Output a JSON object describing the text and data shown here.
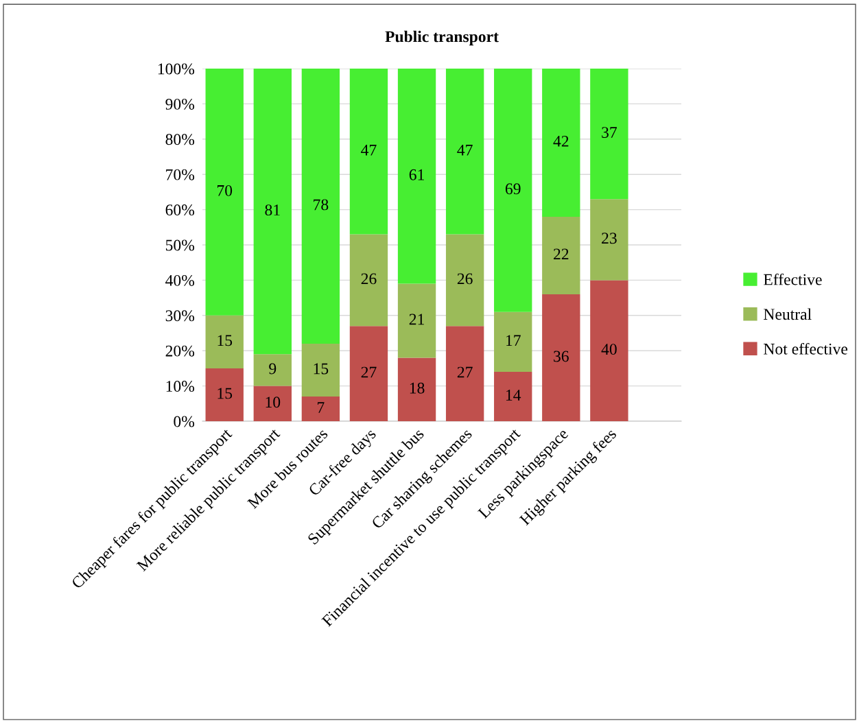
{
  "chart_data": {
    "type": "bar",
    "title": "Public transport",
    "stacked": true,
    "data_labels": true,
    "grid": "y",
    "legend": "right",
    "categories": [
      "Cheaper fares for public transport",
      "More reliable public transport",
      "More bus routes",
      "Car-free days",
      "Supermarket shuttle bus",
      "Car sharing schemes",
      "Financial incentive to use public transport",
      "Less parkingspace",
      "Higher parking fees"
    ],
    "series": [
      {
        "name": "Not effective",
        "color": "#c0504d",
        "values": [
          15,
          10,
          7,
          27,
          18,
          27,
          14,
          36,
          40
        ]
      },
      {
        "name": "Neutral",
        "color": "#9bbb59",
        "values": [
          15,
          9,
          15,
          26,
          21,
          26,
          17,
          22,
          23
        ]
      },
      {
        "name": "Effective",
        "color": "#47ee32",
        "values": [
          70,
          81,
          78,
          47,
          61,
          47,
          69,
          42,
          37
        ]
      }
    ],
    "ylim": [
      0,
      100
    ],
    "yticks": [
      {
        "value": 0,
        "label": "0%"
      },
      {
        "value": 10,
        "label": "10%"
      },
      {
        "value": 20,
        "label": "20%"
      },
      {
        "value": 30,
        "label": "30%"
      },
      {
        "value": 40,
        "label": "40%"
      },
      {
        "value": 50,
        "label": "50%"
      },
      {
        "value": 60,
        "label": "60%"
      },
      {
        "value": 70,
        "label": "70%"
      },
      {
        "value": 80,
        "label": "80%"
      },
      {
        "value": 90,
        "label": "90%"
      },
      {
        "value": 100,
        "label": "100%"
      }
    ]
  }
}
